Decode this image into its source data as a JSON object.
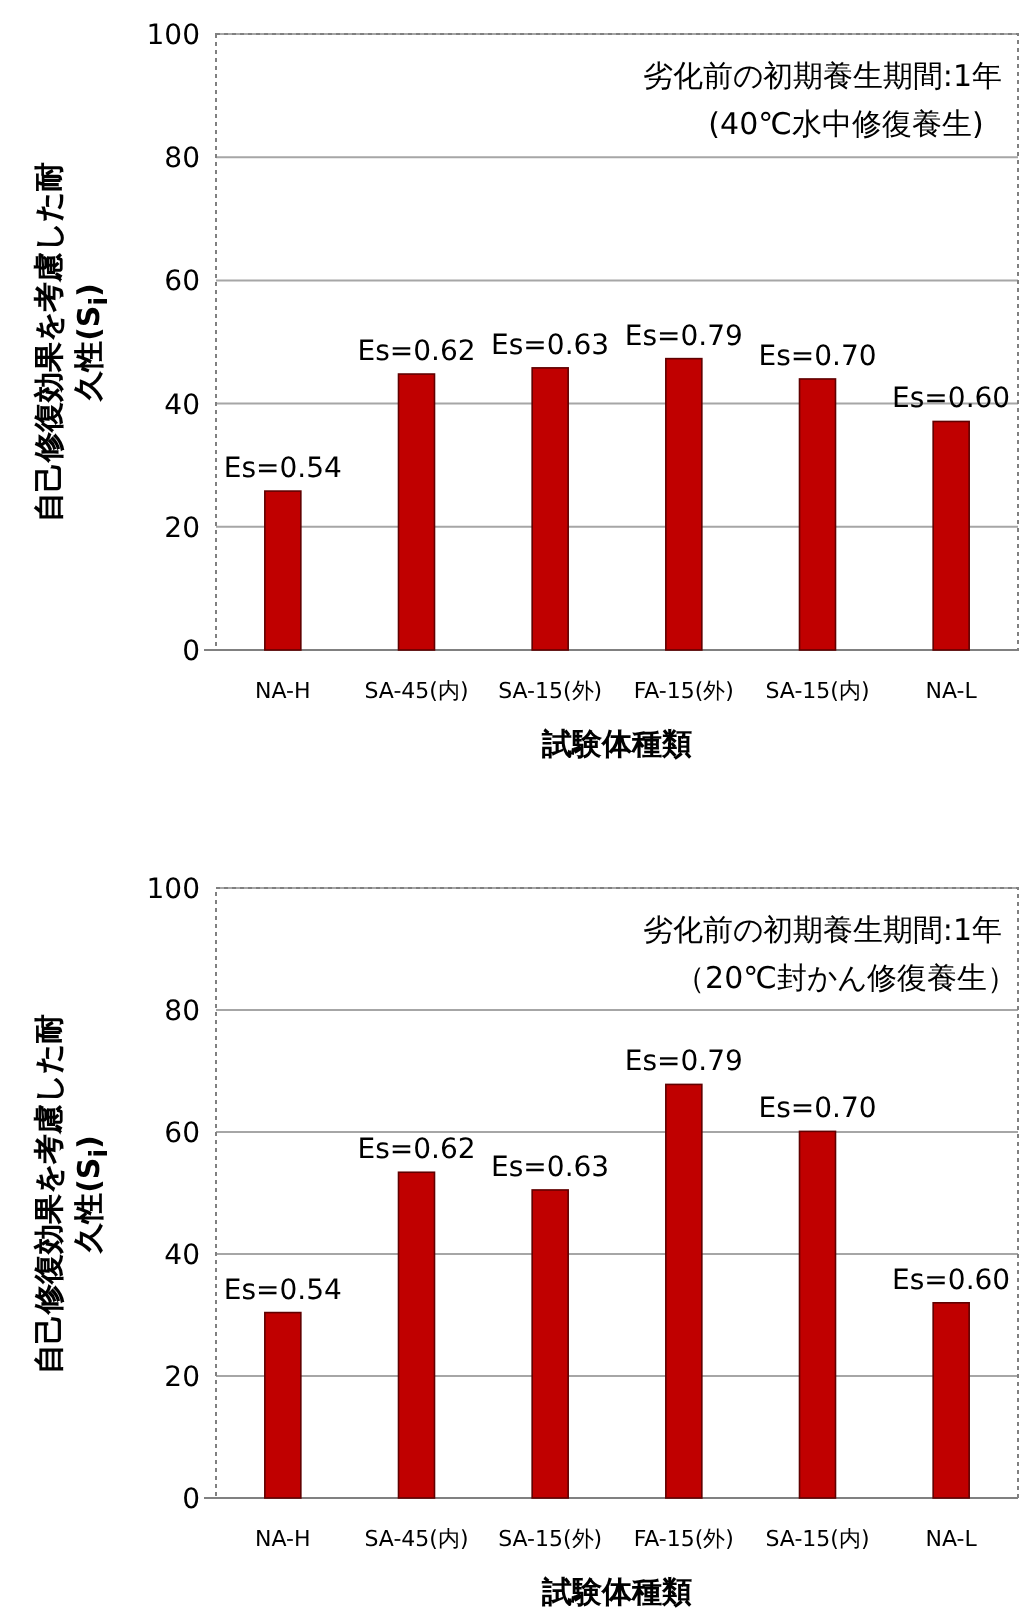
{
  "chart_data": [
    {
      "type": "bar",
      "xlabel": "試験体種類",
      "ylabel": "自己修復効果を考慮した耐久性(S$_{i}$)",
      "annotations": [
        "劣化前の初期養生期間:1年",
        "(40℃水中修復養生)",
        {
          "text": "Es=0.54",
          "x": "NA-H",
          "y": 25.8
        },
        {
          "text": "Es=0.62",
          "x": "SA-45(内)",
          "y": 44.8
        },
        {
          "text": "Es=0.63",
          "x": "SA-15(外)",
          "y": 45.8
        },
        {
          "text": "Es=0.79",
          "x": "FA-15(外)",
          "y": 47.3
        },
        {
          "text": "Es=0.70",
          "x": "SA-15(内)",
          "y": 44.0
        },
        {
          "text": "Es=0.60",
          "x": "NA-L",
          "y": 37.1
        }
      ],
      "categories": [
        "NA-H",
        "SA-45(内)",
        "SA-15(外)",
        "FA-15(外)",
        "SA-15(内)",
        "NA-L"
      ],
      "values": [
        25.8,
        44.8,
        45.8,
        47.3,
        44.0,
        37.1
      ],
      "color": "#c00000",
      "ylim": [
        0,
        100
      ],
      "yticks": [
        0,
        20,
        40,
        60,
        80,
        100
      ],
      "grid": "y"
    },
    {
      "type": "bar",
      "xlabel": "試験体種類",
      "ylabel": "自己修復効果を考慮した耐久性(S$_{i}$)",
      "annotations": [
        "劣化前の初期養生期間:1年",
        "（20℃封かん修復養生）",
        {
          "text": "Es=0.54",
          "x": "NA-H",
          "y": 30.4
        },
        {
          "text": "Es=0.62",
          "x": "SA-45(内)",
          "y": 53.4
        },
        {
          "text": "Es=0.63",
          "x": "SA-15(外)",
          "y": 50.5
        },
        {
          "text": "Es=0.79",
          "x": "FA-15(外)",
          "y": 67.8
        },
        {
          "text": "Es=0.70",
          "x": "SA-15(内)",
          "y": 60.1
        },
        {
          "text": "Es=0.60",
          "x": "NA-L",
          "y": 32.0
        }
      ],
      "categories": [
        "NA-H",
        "SA-45(内)",
        "SA-15(外)",
        "FA-15(外)",
        "SA-15(内)",
        "NA-L"
      ],
      "values": [
        30.4,
        53.4,
        50.5,
        67.8,
        60.1,
        32.0
      ],
      "color": "#c00000",
      "ylim": [
        0,
        100
      ],
      "yticks": [
        0,
        20,
        40,
        60,
        80,
        100
      ],
      "grid": "y"
    }
  ]
}
